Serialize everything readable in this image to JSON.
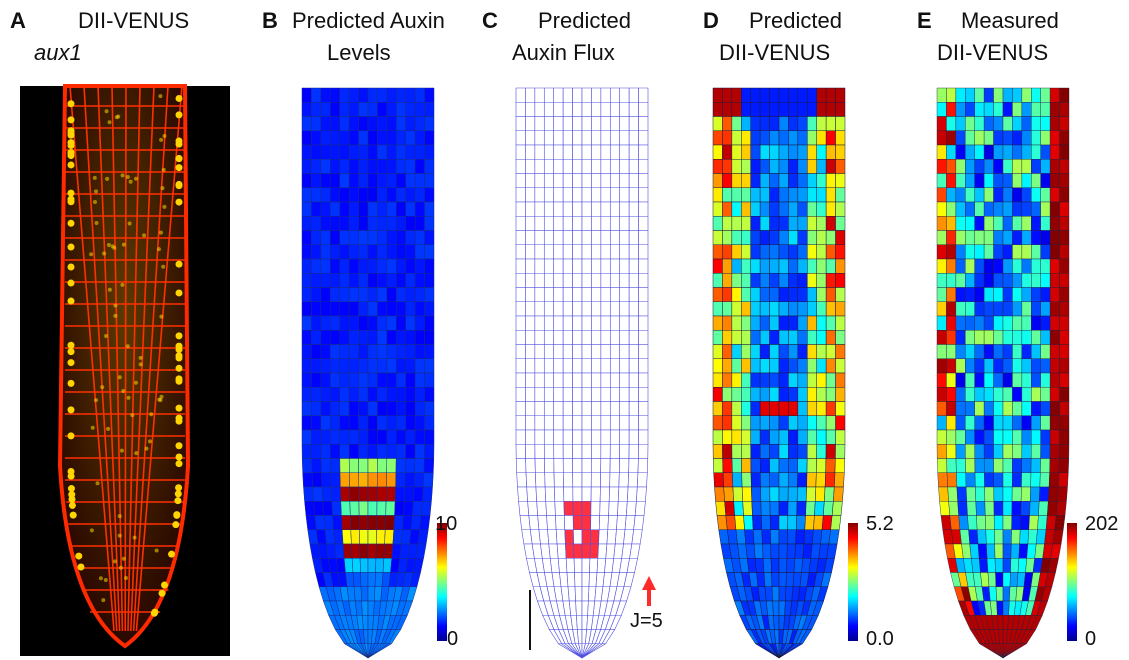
{
  "panels": {
    "a": {
      "letter": "A",
      "title": "DII-VENUS",
      "subtitle": "aux1"
    },
    "b": {
      "letter": "B",
      "title_line1": "Predicted Auxin",
      "title_line2": "Levels",
      "cb_max": "10",
      "cb_min": "0"
    },
    "c": {
      "letter": "C",
      "title_line1": "Predicted",
      "title_line2": "Auxin Flux",
      "flux_label": "J=5"
    },
    "d": {
      "letter": "D",
      "title_line1": "Predicted",
      "title_line2": "DII-VENUS",
      "cb_max": "5.2",
      "cb_min": "0.0"
    },
    "e": {
      "letter": "E",
      "title_line1": "Measured",
      "title_line2": "DII-VENUS",
      "cb_max": "202",
      "cb_min": "0"
    }
  },
  "colors": {
    "jet_low": "#00008f",
    "jet_mid": "#00ffff",
    "jet_high": "#800000",
    "fluorescence_red": "#ff2a00",
    "fluorescence_yellow": "#ffd400",
    "flux_arrow": "#ff2a2a",
    "cell_wall_blue": "#5050e0"
  }
}
